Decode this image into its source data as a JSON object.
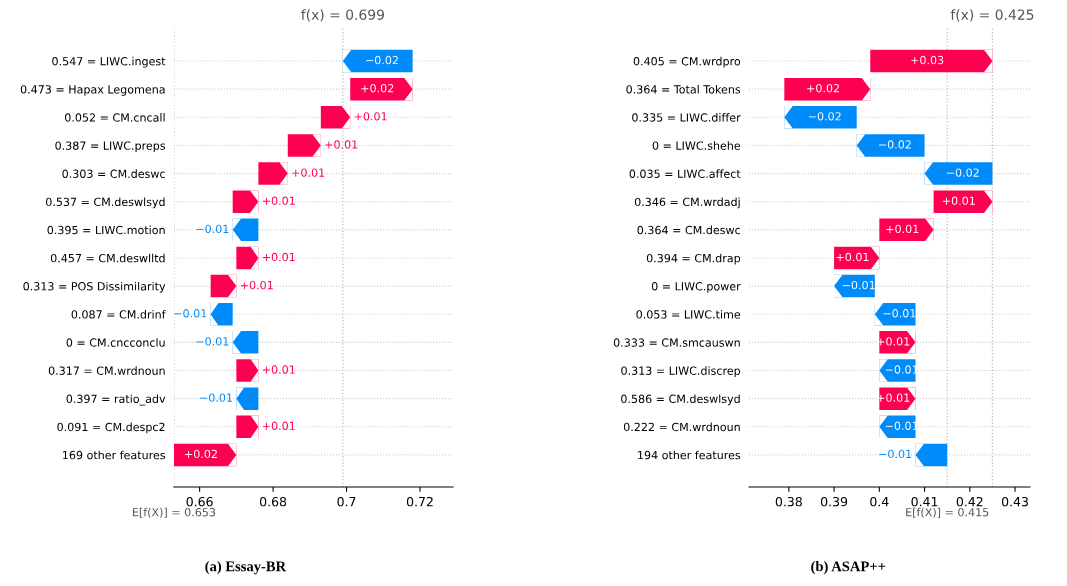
{
  "chart_data": [
    {
      "type": "bar",
      "orientation": "horizontal",
      "title": "(a) Essay-BR",
      "categories": [
        "0.547 = LIWC.ingest",
        "0.473 = Hapax Legomena",
        "0.052 = CM.cncall",
        "0.387 = LIWC.preps",
        "0.303 = CM.deswc",
        "0.537 = CM.deswlsyd",
        "0.395 = LIWC.motion",
        "0.457 = CM.deswlltd",
        "0.313 = POS Dissimilarity",
        "0.087 = CM.drinf",
        "0 = CM.cncconclu",
        "0.317 = CM.wrdnoun",
        "0.397 = ratio_adv",
        "0.091 = CM.despc2",
        "169 other features"
      ],
      "base": [
        0.718,
        0.701,
        0.693,
        0.684,
        0.676,
        0.669,
        0.676,
        0.67,
        0.663,
        0.669,
        0.676,
        0.67,
        0.676,
        0.67,
        0.653
      ],
      "values": [
        -0.019,
        0.017,
        0.008,
        0.009,
        0.008,
        0.007,
        -0.007,
        0.006,
        0.007,
        -0.006,
        -0.007,
        0.006,
        -0.006,
        0.006,
        0.017
      ],
      "value_labels": [
        "−0.02",
        "+0.02",
        "+0.01",
        "+0.01",
        "+0.01",
        "+0.01",
        "−0.01",
        "+0.01",
        "+0.01",
        "−0.01",
        "−0.01",
        "+0.01",
        "−0.01",
        "+0.01",
        "+0.02"
      ],
      "colors": [
        "#008bfb",
        "#ff0051",
        "#ff0051",
        "#ff0051",
        "#ff0051",
        "#ff0051",
        "#008bfb",
        "#ff0051",
        "#ff0051",
        "#008bfb",
        "#008bfb",
        "#ff0051",
        "#008bfb",
        "#ff0051",
        "#ff0051"
      ],
      "xlim": [
        0.653,
        0.729
      ],
      "xticks": [
        0.66,
        0.68,
        0.7,
        0.72
      ],
      "grid": "y",
      "tick_labels": "x",
      "ref_lines": [
        {
          "axis": "x",
          "value": 0.699,
          "label": "f(x) = 0.699",
          "color": "#bbbbbb",
          "line_style": "dotted"
        },
        {
          "axis": "x",
          "value": 0.653,
          "label": "E[f(X)] = 0.653",
          "color": "#bbbbbb",
          "line_style": "dotted"
        }
      ]
    },
    {
      "type": "bar",
      "orientation": "horizontal",
      "title": "(b) ASAP++",
      "categories": [
        "0.405 = CM.wrdpro",
        "0.364 = Total Tokens",
        "0.335 = LIWC.differ",
        "0 = LIWC.shehe",
        "0.035 = LIWC.affect",
        "0.346 = CM.wrdadj",
        "0.364 = CM.deswc",
        "0.394 = CM.drap",
        "0 = LIWC.power",
        "0.053 = LIWC.time",
        "0.333 = CM.smcauswn",
        "0.313 = LIWC.discrep",
        "0.586 = CM.deswlsyd",
        "0.222 = CM.wrdnoun",
        "194 other features"
      ],
      "base": [
        0.398,
        0.379,
        0.395,
        0.41,
        0.425,
        0.412,
        0.4,
        0.39,
        0.399,
        0.408,
        0.4,
        0.408,
        0.4,
        0.408,
        0.415
      ],
      "values": [
        0.027,
        0.019,
        -0.016,
        -0.015,
        -0.015,
        0.013,
        0.012,
        0.01,
        -0.009,
        -0.009,
        0.008,
        -0.008,
        0.008,
        -0.008,
        -0.007
      ],
      "value_labels": [
        "+0.03",
        "+0.02",
        "−0.02",
        "−0.02",
        "−0.02",
        "+0.01",
        "+0.01",
        "+0.01",
        "−0.01",
        "−0.01",
        "+0.01",
        "−0.01",
        "+0.01",
        "−0.01",
        "−0.01"
      ],
      "colors": [
        "#ff0051",
        "#ff0051",
        "#008bfb",
        "#008bfb",
        "#008bfb",
        "#ff0051",
        "#ff0051",
        "#ff0051",
        "#008bfb",
        "#008bfb",
        "#ff0051",
        "#008bfb",
        "#ff0051",
        "#008bfb",
        "#008bfb"
      ],
      "xlim": [
        0.3712,
        0.4333
      ],
      "xticks": [
        0.38,
        0.39,
        0.4,
        0.41,
        0.42,
        0.43
      ],
      "grid": "y",
      "tick_labels": "x",
      "ref_lines": [
        {
          "axis": "x",
          "value": 0.425,
          "label": "f(x) = 0.425",
          "color": "#bbbbbb",
          "line_style": "dotted"
        },
        {
          "axis": "x",
          "value": 0.415,
          "label": "E[f(X)] = 0.415",
          "color": "#bbbbbb",
          "line_style": "dotted"
        }
      ]
    }
  ]
}
